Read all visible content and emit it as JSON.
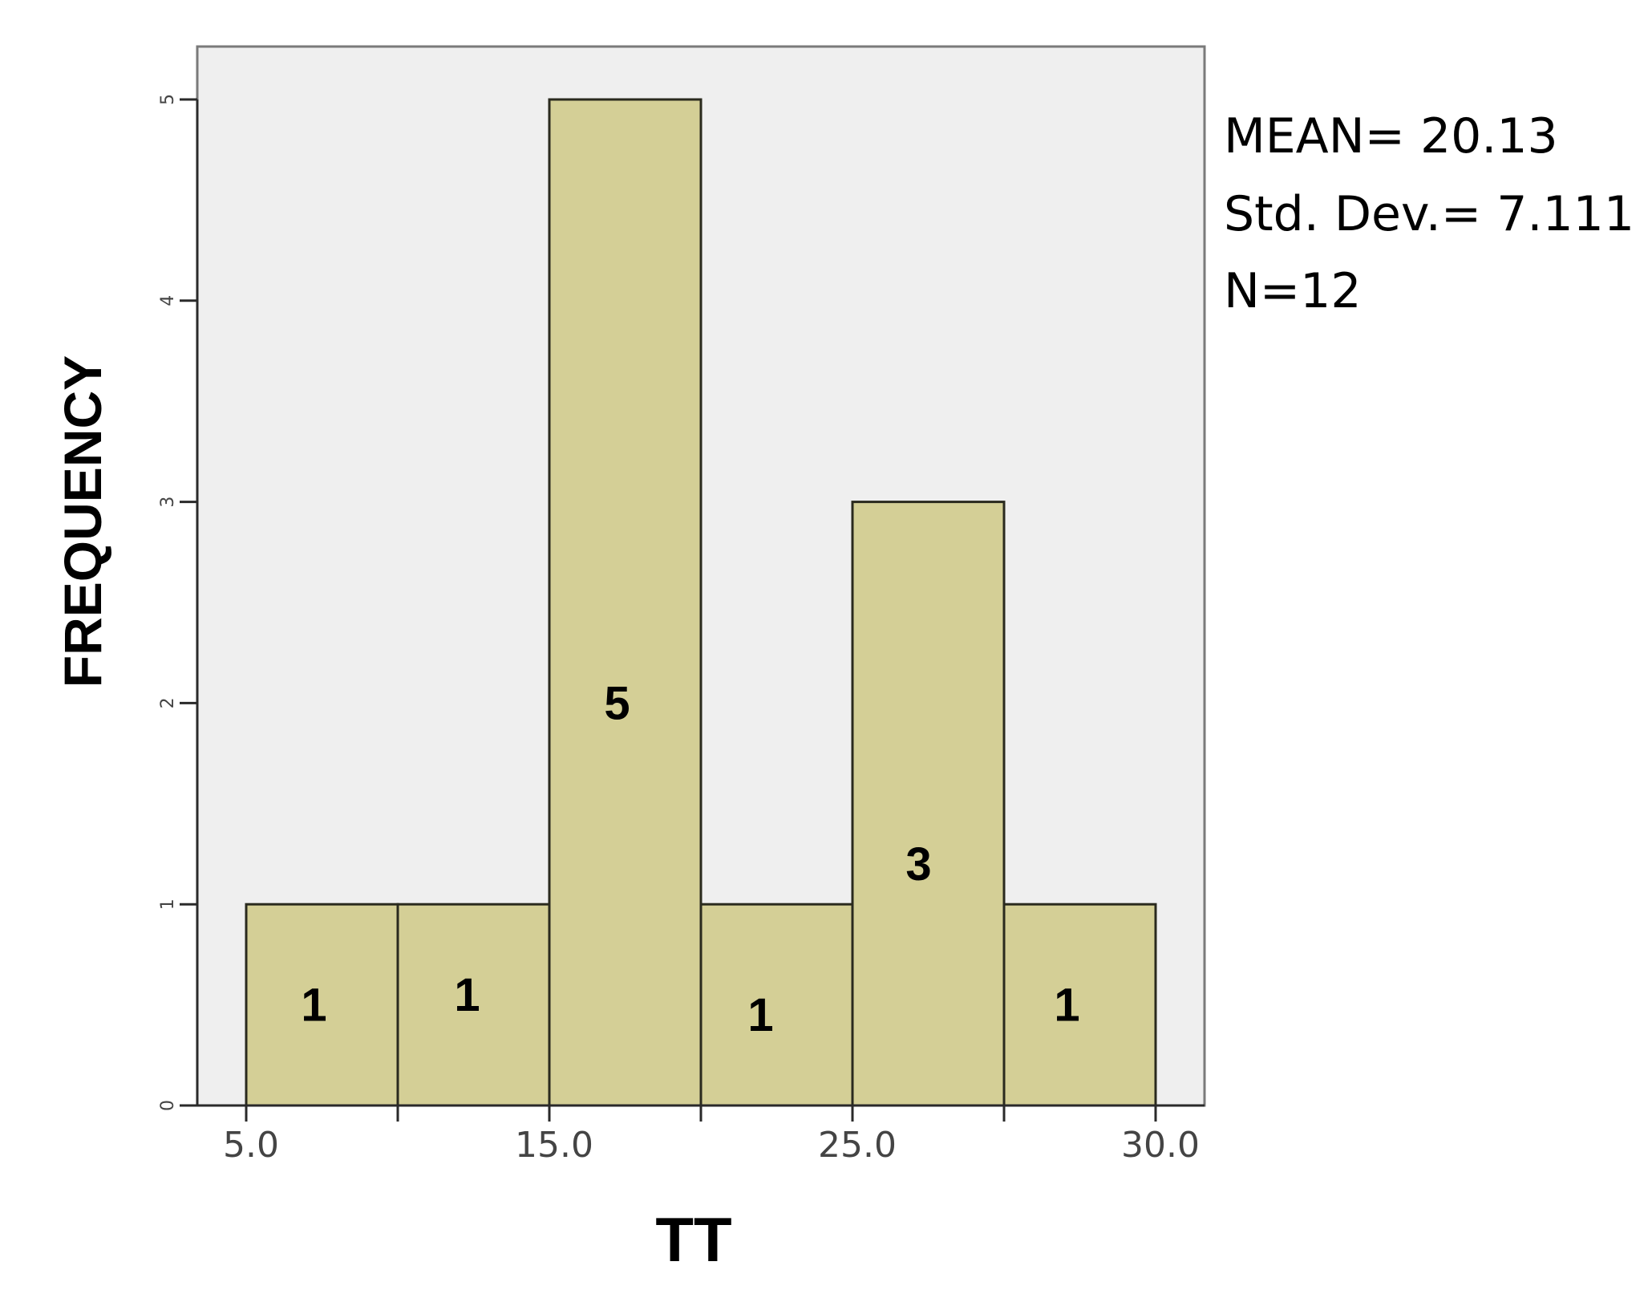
{
  "chart_data": {
    "type": "bar",
    "xlabel": "TT",
    "ylabel": "FREQUENCY",
    "bins": [
      {
        "value": 1,
        "label": "1"
      },
      {
        "value": 1,
        "label": "1"
      },
      {
        "value": 5,
        "label": "5"
      },
      {
        "value": 1,
        "label": "1"
      },
      {
        "value": 3,
        "label": "3"
      },
      {
        "value": 1,
        "label": "1"
      }
    ],
    "x_tick_labels": [
      "5.0",
      "15.0",
      "25.0",
      "30.0"
    ],
    "y_ticks": [
      "0",
      "1",
      "2",
      "3",
      "4",
      "5"
    ],
    "ylim": [
      0,
      5
    ],
    "grid": false,
    "colors": {
      "bar_fill": "#d4cf96",
      "bar_stroke": "#2a2a1e",
      "plot_bg": "#efefef",
      "frame": "#7a7a7a",
      "axis": "#2a2a2a",
      "tick_text": "#444444"
    }
  },
  "stats": {
    "mean": "MEAN= 20.13",
    "std_dev": "Std. Dev.= 7.111",
    "n": "N=12"
  }
}
